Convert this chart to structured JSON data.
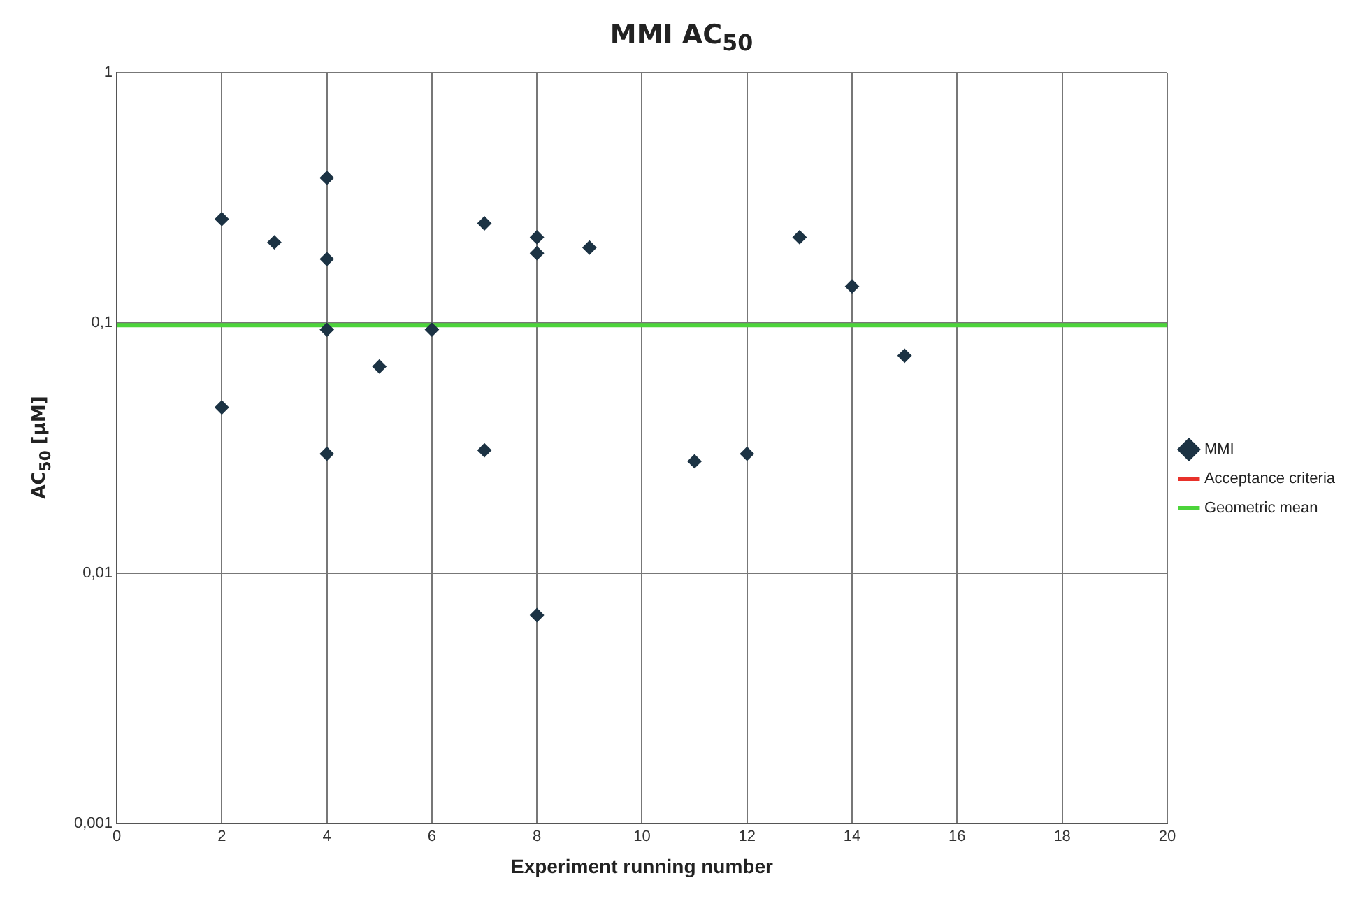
{
  "chart_data": {
    "type": "scatter",
    "title": "MMI AC$_{50}$",
    "xlabel": "Experiment running number",
    "ylabel": "AC$_{50}$ [µM]",
    "series": [
      {
        "name": "MMI",
        "type": "scatter",
        "color": "#1c3344",
        "marker": "diamond",
        "x": [
          2,
          2,
          3,
          4,
          4,
          4,
          4,
          5,
          6,
          7,
          7,
          8,
          8,
          8,
          9,
          11,
          12,
          13,
          14,
          15
        ],
        "values": [
          0.26,
          0.046,
          0.21,
          0.38,
          0.18,
          0.094,
          0.03,
          0.067,
          0.094,
          0.25,
          0.031,
          0.22,
          0.19,
          0.0068,
          0.2,
          0.028,
          0.03,
          0.22,
          0.14,
          0.074
        ]
      },
      {
        "name": "Acceptance criteria",
        "type": "line",
        "color": "#e8312a",
        "marker": "none"
      },
      {
        "name": "Geometric mean",
        "type": "line",
        "color": "#4cd43a",
        "marker": "none",
        "x": [
          0,
          20
        ],
        "values": [
          0.098,
          0.098
        ]
      }
    ],
    "xlim": [
      0,
      20
    ],
    "xticks": [
      0,
      2,
      4,
      6,
      8,
      10,
      12,
      14,
      16,
      18,
      20
    ],
    "ylim": [
      0.001,
      1
    ],
    "yticks": [
      {
        "value": 0.001,
        "label": "0,001"
      },
      {
        "value": 0.01,
        "label": "0,01"
      },
      {
        "value": 0.1,
        "label": "0,1"
      },
      {
        "value": 1,
        "label": "1"
      }
    ],
    "log": "y",
    "grid": true,
    "legend": "right"
  }
}
